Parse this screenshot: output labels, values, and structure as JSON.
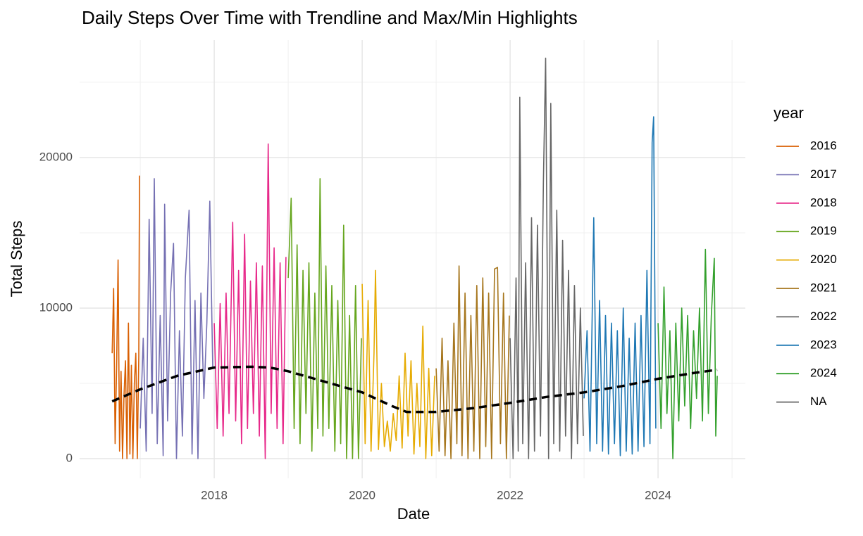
{
  "chart_data": {
    "type": "line",
    "title": "Daily Steps Over Time with Trendline and Max/Min Highlights",
    "x_label": "Date",
    "y_label": "Total Steps",
    "legend_title": "year",
    "legend_position": "right",
    "xlim": [
      2016.18,
      2025.18
    ],
    "xticks": [
      2018,
      2020,
      2022,
      2024
    ],
    "minor_xticks": [
      2017,
      2019,
      2021,
      2023,
      2025
    ],
    "ylim": [
      -1310,
      27800
    ],
    "yticks": [
      0,
      10000,
      20000
    ],
    "minor_yticks": [
      5000,
      15000,
      25000
    ],
    "grid": true,
    "series": [
      {
        "name": "2016",
        "color": "#D95F02",
        "x": [
          2016.62,
          2016.64,
          2016.66,
          2016.68,
          2016.7,
          2016.72,
          2016.74,
          2016.76,
          2016.78,
          2016.8,
          2016.82,
          2016.84,
          2016.86,
          2016.88,
          2016.9,
          2016.92,
          2016.94,
          2016.96,
          2016.98,
          2016.99
        ],
        "values": [
          7000,
          11300,
          1000,
          6000,
          13200,
          500,
          5800,
          0,
          4200,
          6500,
          0,
          9000,
          300,
          6200,
          0,
          5000,
          7000,
          0,
          6800,
          18800
        ]
      },
      {
        "name": "2017",
        "color": "#7570B3",
        "x": [
          2017.0,
          2017.04,
          2017.08,
          2017.12,
          2017.16,
          2017.19,
          2017.23,
          2017.27,
          2017.31,
          2017.33,
          2017.37,
          2017.41,
          2017.45,
          2017.49,
          2017.53,
          2017.57,
          2017.61,
          2017.66,
          2017.7,
          2017.74,
          2017.78,
          2017.82,
          2017.86,
          2017.9,
          2017.94,
          2017.98
        ],
        "values": [
          2000,
          8000,
          500,
          15900,
          3000,
          18600,
          1000,
          9500,
          200,
          16900,
          2500,
          11000,
          14300,
          0,
          8500,
          1500,
          12000,
          16500,
          300,
          10500,
          0,
          11000,
          4000,
          9000,
          17100,
          6000
        ]
      },
      {
        "name": "2018",
        "color": "#E7298A",
        "x": [
          2018.0,
          2018.04,
          2018.08,
          2018.12,
          2018.16,
          2018.2,
          2018.25,
          2018.29,
          2018.33,
          2018.37,
          2018.41,
          2018.45,
          2018.49,
          2018.53,
          2018.57,
          2018.61,
          2018.65,
          2018.69,
          2018.73,
          2018.77,
          2018.81,
          2018.85,
          2018.89,
          2018.93,
          2018.97
        ],
        "values": [
          9000,
          2000,
          10300,
          1500,
          11000,
          3000,
          15700,
          2500,
          12500,
          1000,
          14900,
          2000,
          11800,
          3000,
          13000,
          1500,
          12800,
          0,
          20900,
          3000,
          14000,
          2000,
          13000,
          1000,
          13400
        ]
      },
      {
        "name": "2019",
        "color": "#66A61E",
        "x": [
          2019.0,
          2019.04,
          2019.08,
          2019.12,
          2019.16,
          2019.2,
          2019.24,
          2019.28,
          2019.32,
          2019.36,
          2019.4,
          2019.43,
          2019.47,
          2019.51,
          2019.55,
          2019.59,
          2019.63,
          2019.67,
          2019.71,
          2019.75,
          2019.79,
          2019.83,
          2019.87,
          2019.91,
          2019.95,
          2019.99
        ],
        "values": [
          12000,
          17300,
          2000,
          14200,
          1000,
          12500,
          3000,
          13000,
          500,
          11000,
          2000,
          18600,
          1500,
          12800,
          2000,
          11500,
          500,
          10500,
          1000,
          15500,
          0,
          9500,
          0,
          11500,
          0,
          8000
        ]
      },
      {
        "name": "2020",
        "color": "#E6AB02",
        "x": [
          2020.0,
          2020.04,
          2020.08,
          2020.12,
          2020.16,
          2020.18,
          2020.22,
          2020.26,
          2020.3,
          2020.34,
          2020.38,
          2020.42,
          2020.46,
          2020.5,
          2020.54,
          2020.58,
          2020.62,
          2020.66,
          2020.7,
          2020.74,
          2020.78,
          2020.82,
          2020.86,
          2020.9,
          2020.94,
          2020.98
        ],
        "values": [
          11600,
          1000,
          10500,
          500,
          7000,
          12500,
          600,
          5000,
          800,
          2500,
          500,
          3000,
          1200,
          5500,
          700,
          7000,
          1500,
          6500,
          300,
          5000,
          800,
          8800,
          0,
          6000,
          200,
          5500
        ]
      },
      {
        "name": "2021",
        "color": "#A6761D",
        "x": [
          2021.0,
          2021.04,
          2021.08,
          2021.12,
          2021.16,
          2021.2,
          2021.24,
          2021.28,
          2021.31,
          2021.35,
          2021.39,
          2021.43,
          2021.47,
          2021.51,
          2021.55,
          2021.59,
          2021.63,
          2021.67,
          2021.71,
          2021.75,
          2021.79,
          2021.83,
          2021.87,
          2021.91,
          2021.95,
          2021.99
        ],
        "values": [
          6000,
          500,
          8000,
          200,
          6500,
          0,
          9000,
          1000,
          12800,
          200,
          11000,
          0,
          9500,
          500,
          11500,
          0,
          12000,
          800,
          11000,
          0,
          12600,
          12700,
          1000,
          11000,
          0,
          9500
        ]
      },
      {
        "name": "2022",
        "color": "#666666",
        "x": [
          2022.0,
          2022.04,
          2022.08,
          2022.11,
          2022.13,
          2022.17,
          2022.21,
          2022.25,
          2022.29,
          2022.33,
          2022.37,
          2022.41,
          2022.45,
          2022.48,
          2022.52,
          2022.55,
          2022.59,
          2022.63,
          2022.67,
          2022.71,
          2022.75,
          2022.79,
          2022.83,
          2022.87,
          2022.91,
          2022.95,
          2022.99
        ],
        "values": [
          8000,
          0,
          12000,
          500,
          24000,
          1000,
          13000,
          0,
          16000,
          500,
          15500,
          1500,
          18300,
          26600,
          0,
          23600,
          1000,
          16500,
          500,
          14500,
          1500,
          12500,
          0,
          11500,
          1000,
          10000,
          1500
        ]
      },
      {
        "name": "2023",
        "color": "#1F78B4",
        "x": [
          2023.0,
          2023.04,
          2023.08,
          2023.13,
          2023.17,
          2023.21,
          2023.25,
          2023.29,
          2023.33,
          2023.37,
          2023.41,
          2023.45,
          2023.49,
          2023.53,
          2023.57,
          2023.61,
          2023.65,
          2023.69,
          2023.73,
          2023.77,
          2023.81,
          2023.85,
          2023.89,
          2023.92,
          2023.94,
          2023.97
        ],
        "values": [
          4000,
          8500,
          500,
          16000,
          1000,
          10500,
          500,
          9500,
          300,
          9000,
          1000,
          8500,
          200,
          10000,
          500,
          8000,
          300,
          9000,
          500,
          9500,
          800,
          12500,
          1000,
          21000,
          22700,
          2000
        ]
      },
      {
        "name": "2024",
        "color": "#33A02C",
        "x": [
          2024.0,
          2024.04,
          2024.08,
          2024.12,
          2024.16,
          2024.2,
          2024.24,
          2024.28,
          2024.32,
          2024.36,
          2024.4,
          2024.44,
          2024.48,
          2024.52,
          2024.56,
          2024.6,
          2024.64,
          2024.68,
          2024.72,
          2024.76,
          2024.78,
          2024.8
        ],
        "values": [
          9000,
          2000,
          11400,
          3000,
          8500,
          0,
          9000,
          2500,
          10000,
          3500,
          9500,
          2000,
          8500,
          4000,
          10000,
          2500,
          13900,
          3000,
          9500,
          13300,
          1500,
          5500
        ]
      },
      {
        "name": "NA",
        "color": "#666666",
        "x": [],
        "values": []
      }
    ],
    "trend": {
      "color": "#000000",
      "x": [
        2016.62,
        2017.0,
        2017.5,
        2018.0,
        2018.5,
        2018.75,
        2019.0,
        2019.5,
        2020.0,
        2020.4,
        2020.6,
        2021.0,
        2021.5,
        2022.0,
        2022.5,
        2023.0,
        2023.5,
        2024.0,
        2024.5,
        2024.8
      ],
      "values": [
        3800,
        4600,
        5500,
        6050,
        6100,
        6050,
        5800,
        5100,
        4400,
        3500,
        3100,
        3100,
        3350,
        3700,
        4100,
        4400,
        4800,
        5300,
        5700,
        5900
      ]
    }
  }
}
